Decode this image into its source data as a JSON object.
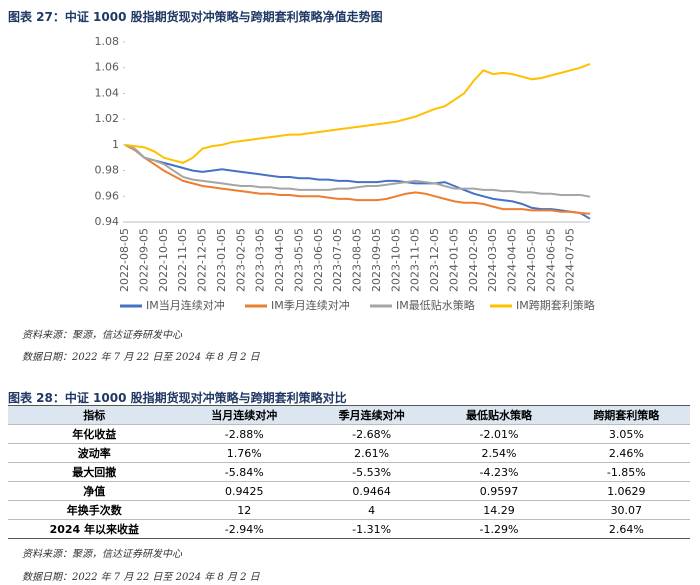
{
  "figure_caption": "图表 27：中证 1000 股指期货现对冲策略与跨期套利策略净值走势图",
  "chart_data": {
    "type": "line",
    "categories": [
      "2022-08-05",
      null,
      "2022-09-05",
      null,
      "2022-10-05",
      null,
      "2022-11-05",
      null,
      "2022-12-05",
      null,
      "2023-01-05",
      null,
      "2023-02-05",
      null,
      "2023-03-05",
      null,
      "2023-04-05",
      null,
      "2023-05-05",
      null,
      "2023-06-05",
      null,
      "2023-07-05",
      null,
      "2023-08-05",
      null,
      "2023-09-05",
      null,
      "2023-10-05",
      null,
      "2023-11-05",
      null,
      "2023-12-05",
      null,
      "2024-01-05",
      null,
      "2024-02-05",
      null,
      "2024-03-05",
      null,
      "2024-04-05",
      null,
      "2024-05-05",
      null,
      "2024-06-05",
      null,
      "2024-07-05",
      null,
      null
    ],
    "series": [
      {
        "name": "IM当月连续对冲",
        "color": "#4472c4",
        "values": [
          1.0,
          0.997,
          0.99,
          0.988,
          0.986,
          0.984,
          0.982,
          0.98,
          0.979,
          0.98,
          0.981,
          0.98,
          0.979,
          0.978,
          0.977,
          0.976,
          0.975,
          0.975,
          0.974,
          0.974,
          0.973,
          0.973,
          0.972,
          0.972,
          0.971,
          0.971,
          0.971,
          0.972,
          0.972,
          0.971,
          0.97,
          0.97,
          0.97,
          0.971,
          0.968,
          0.965,
          0.962,
          0.96,
          0.958,
          0.957,
          0.956,
          0.954,
          0.951,
          0.95,
          0.95,
          0.949,
          0.948,
          0.947,
          0.9425
        ]
      },
      {
        "name": "IM季月连续对冲",
        "color": "#ed7d31",
        "values": [
          1.0,
          0.996,
          0.99,
          0.985,
          0.98,
          0.976,
          0.972,
          0.97,
          0.968,
          0.967,
          0.966,
          0.965,
          0.964,
          0.963,
          0.962,
          0.962,
          0.961,
          0.961,
          0.96,
          0.96,
          0.96,
          0.959,
          0.958,
          0.958,
          0.957,
          0.957,
          0.957,
          0.958,
          0.96,
          0.962,
          0.963,
          0.962,
          0.96,
          0.958,
          0.956,
          0.955,
          0.955,
          0.954,
          0.952,
          0.95,
          0.95,
          0.95,
          0.949,
          0.949,
          0.949,
          0.948,
          0.948,
          0.947,
          0.9464
        ]
      },
      {
        "name": "IM最低贴水策略",
        "color": "#a5a5a5",
        "values": [
          1.0,
          0.997,
          0.99,
          0.988,
          0.985,
          0.98,
          0.975,
          0.973,
          0.972,
          0.971,
          0.97,
          0.969,
          0.968,
          0.968,
          0.967,
          0.967,
          0.966,
          0.966,
          0.965,
          0.965,
          0.965,
          0.965,
          0.966,
          0.966,
          0.967,
          0.968,
          0.968,
          0.969,
          0.97,
          0.971,
          0.972,
          0.971,
          0.97,
          0.968,
          0.966,
          0.966,
          0.966,
          0.965,
          0.965,
          0.964,
          0.964,
          0.963,
          0.963,
          0.962,
          0.962,
          0.961,
          0.961,
          0.961,
          0.9597
        ]
      },
      {
        "name": "IM跨期套利策略",
        "color": "#ffc000",
        "values": [
          1.0,
          0.999,
          0.998,
          0.995,
          0.99,
          0.988,
          0.986,
          0.99,
          0.997,
          0.999,
          1.0,
          1.002,
          1.003,
          1.004,
          1.005,
          1.006,
          1.007,
          1.008,
          1.008,
          1.009,
          1.01,
          1.011,
          1.012,
          1.013,
          1.014,
          1.015,
          1.016,
          1.017,
          1.018,
          1.02,
          1.022,
          1.025,
          1.028,
          1.03,
          1.035,
          1.04,
          1.05,
          1.058,
          1.055,
          1.056,
          1.055,
          1.053,
          1.051,
          1.052,
          1.054,
          1.056,
          1.058,
          1.06,
          1.063
        ]
      }
    ],
    "ylim": [
      0.94,
      1.08
    ],
    "yticks": [
      0.94,
      0.96,
      0.98,
      1,
      1.02,
      1.04,
      1.06,
      1.08
    ],
    "grid": false,
    "legend": "bottom"
  },
  "chart_notes": [
    "资料来源：聚源，信达证券研发中心",
    "数据日期：2022 年 7 月 22 日至 2024 年 8 月 2 日"
  ],
  "table_caption": "图表 28：中证 1000 股指期货现对冲策略与跨期套利策略对比",
  "table": {
    "header": [
      "指标",
      "当月连续对冲",
      "季月连续对冲",
      "最低贴水策略",
      "跨期套利策略"
    ],
    "rows": [
      [
        "年化收益",
        "-2.88%",
        "-2.68%",
        "-2.01%",
        "3.05%"
      ],
      [
        "波动率",
        "1.76%",
        "2.61%",
        "2.54%",
        "2.46%"
      ],
      [
        "最大回撤",
        "-5.84%",
        "-5.53%",
        "-4.23%",
        "-1.85%"
      ],
      [
        "净值",
        "0.9425",
        "0.9464",
        "0.9597",
        "1.0629"
      ],
      [
        "年换手次数",
        "12",
        "4",
        "14.29",
        "30.07"
      ],
      [
        "2024 年以来收益",
        "-2.94%",
        "-1.31%",
        "-1.29%",
        "2.64%"
      ]
    ]
  },
  "table_notes": [
    "资料来源：聚源，信达证券研发中心",
    "数据日期：2022 年 7 月 22 日至 2024 年 8 月 2 日"
  ]
}
